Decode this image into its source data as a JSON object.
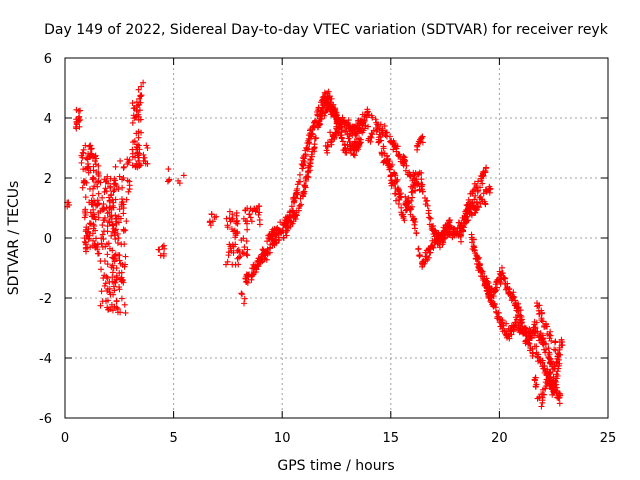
{
  "chart_data": {
    "type": "scatter",
    "title": "Day 149 of 2022, Sidereal Day-to-day VTEC variation (SDTVAR) for receiver reyk",
    "xlabel": "GPS time / hours",
    "ylabel": "SDTVAR / TECUs",
    "xlim": [
      0,
      25
    ],
    "ylim": [
      -6,
      6
    ],
    "grid": true,
    "marker": "+",
    "color": "#ff0000",
    "x_ticks": [
      0,
      5,
      10,
      15,
      20,
      25
    ],
    "y_ticks": [
      -6,
      -4,
      -2,
      0,
      2,
      4,
      6
    ],
    "x_tick_labels": [
      "0",
      "5",
      "10",
      "15",
      "20",
      "25"
    ],
    "y_tick_labels": [
      "-6",
      "-4",
      "-2",
      "0",
      "2",
      "4",
      "6"
    ],
    "series": [
      {
        "name": "SDTVAR",
        "clusters": [
          {
            "x0": 0.1,
            "x1": 0.25,
            "y0": 1.0,
            "y1": 1.3,
            "n": 4
          },
          {
            "x0": 0.5,
            "x1": 0.7,
            "y0": 3.6,
            "y1": 4.3,
            "n": 14
          },
          {
            "x0": 0.75,
            "x1": 1.6,
            "y0": 1.6,
            "y1": 3.1,
            "n": 60
          },
          {
            "x0": 0.9,
            "x1": 1.6,
            "y0": -0.6,
            "y1": 1.5,
            "n": 70
          },
          {
            "x0": 1.6,
            "x1": 2.8,
            "y0": -2.5,
            "y1": 2.1,
            "n": 160
          },
          {
            "x0": 1.9,
            "x1": 3.0,
            "y0": 0.4,
            "y1": 2.7,
            "n": 40
          },
          {
            "x0": 3.1,
            "x1": 3.5,
            "y0": 2.3,
            "y1": 4.6,
            "n": 50
          },
          {
            "x0": 3.3,
            "x1": 3.6,
            "y0": 4.4,
            "y1": 5.2,
            "n": 8
          },
          {
            "x0": 3.5,
            "x1": 3.8,
            "y0": 2.4,
            "y1": 3.1,
            "n": 8
          },
          {
            "x0": 4.3,
            "x1": 4.6,
            "y0": -0.7,
            "y1": 0.0,
            "n": 8
          },
          {
            "x0": 4.7,
            "x1": 4.85,
            "y0": 1.6,
            "y1": 2.3,
            "n": 4
          },
          {
            "x0": 5.2,
            "x1": 5.5,
            "y0": 1.8,
            "y1": 2.1,
            "n": 3
          },
          {
            "x0": 6.6,
            "x1": 7.0,
            "y0": 0.3,
            "y1": 0.8,
            "n": 8
          },
          {
            "x0": 7.4,
            "x1": 8.4,
            "y0": -0.9,
            "y1": 1.0,
            "n": 60
          },
          {
            "x0": 8.05,
            "x1": 8.3,
            "y0": -2.3,
            "y1": -1.8,
            "n": 4
          },
          {
            "x0": 8.3,
            "x1": 9.0,
            "y0": 0.4,
            "y1": 1.1,
            "n": 20
          }
        ],
        "curves": [
          {
            "x": [
              8.3,
              8.8,
              9.3,
              9.8,
              10.3,
              10.7,
              11.1,
              11.5,
              11.9,
              12.2,
              12.5,
              13.0,
              13.4,
              13.8
            ],
            "y": [
              -1.4,
              -1.0,
              -0.2,
              0.3,
              0.6,
              1.6,
              2.9,
              3.9,
              4.7,
              4.6,
              4.0,
              3.7,
              3.6,
              3.9
            ],
            "spread": 0.35,
            "n": 300
          },
          {
            "x": [
              8.6,
              9.2,
              9.9,
              10.4,
              10.9,
              11.3,
              11.7,
              12.0,
              12.4,
              12.8
            ],
            "y": [
              -1.2,
              -0.6,
              0.1,
              0.4,
              1.2,
              2.5,
              3.9,
              4.4,
              4.2,
              3.3
            ],
            "spread": 0.3,
            "n": 180
          },
          {
            "x": [
              12.0,
              12.6,
              13.3,
              13.9,
              14.5,
              15.0,
              15.5,
              16.0,
              16.5,
              16.9,
              17.3,
              17.7,
              18.2,
              18.6,
              19.0,
              19.4
            ],
            "y": [
              3.0,
              3.7,
              3.1,
              4.2,
              3.7,
              3.3,
              2.6,
              2.0,
              1.6,
              0.3,
              -0.2,
              0.4,
              0.0,
              1.2,
              1.7,
              2.3
            ],
            "spread": 0.35,
            "n": 260
          },
          {
            "x": [
              12.8,
              13.3,
              13.8,
              14.3,
              14.8,
              15.2,
              15.6,
              16.0,
              16.4
            ],
            "y": [
              3.1,
              2.9,
              3.5,
              3.4,
              2.6,
              1.5,
              0.7,
              1.6,
              2.3
            ],
            "spread": 0.4,
            "n": 140
          },
          {
            "x": [
              14.8,
              15.4,
              16.0,
              16.4,
              16.8,
              17.2,
              17.6,
              18.0,
              18.4,
              18.8,
              19.2,
              19.6
            ],
            "y": [
              2.7,
              1.6,
              0.8,
              -0.9,
              -0.4,
              0.0,
              0.3,
              0.1,
              0.7,
              1.0,
              1.2,
              1.7
            ],
            "spread": 0.35,
            "n": 200
          },
          {
            "x": [
              16.2,
              16.4,
              16.5
            ],
            "y": [
              3.0,
              3.4,
              3.2
            ],
            "spread": 0.15,
            "n": 12
          },
          {
            "x": [
              18.7,
              19.0,
              19.3,
              19.6,
              20.0,
              20.4,
              20.8,
              21.2,
              21.6,
              22.0,
              22.4,
              22.8
            ],
            "y": [
              0.1,
              -0.8,
              -1.4,
              -2.0,
              -2.7,
              -3.2,
              -2.8,
              -3.3,
              -3.8,
              -4.2,
              -4.8,
              -5.3
            ],
            "spread": 0.35,
            "n": 230
          },
          {
            "x": [
              19.3,
              19.7,
              20.1,
              20.5,
              20.9,
              21.3,
              21.7,
              22.1,
              22.5,
              22.9
            ],
            "y": [
              -1.4,
              -1.9,
              -1.2,
              -1.8,
              -2.5,
              -3.4,
              -3.0,
              -3.6,
              -4.4,
              -3.4
            ],
            "spread": 0.35,
            "n": 200
          },
          {
            "x": [
              21.6,
              21.9,
              22.2,
              22.5,
              22.8
            ],
            "y": [
              -4.6,
              -5.6,
              -4.6,
              -5.2,
              -4.0
            ],
            "spread": 0.35,
            "n": 60
          },
          {
            "x": [
              21.7,
              22.0,
              22.3,
              22.6
            ],
            "y": [
              -2.1,
              -2.8,
              -3.2,
              -3.6
            ],
            "spread": 0.3,
            "n": 30
          }
        ]
      }
    ]
  }
}
